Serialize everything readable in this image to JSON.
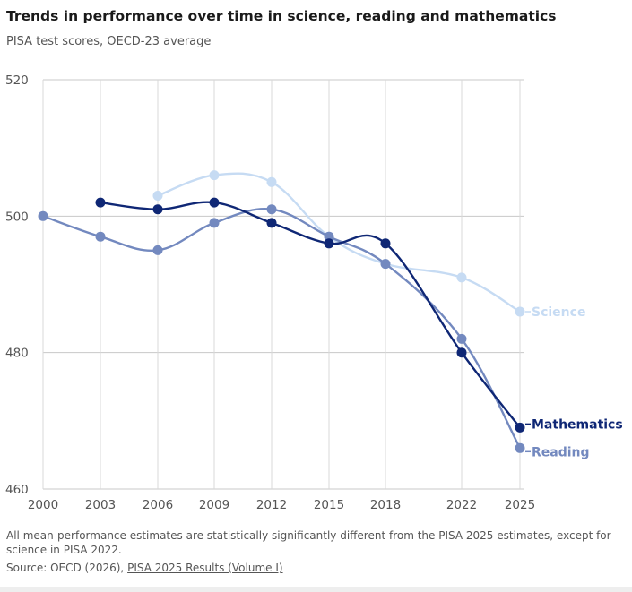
{
  "header": {
    "title": "Trends in performance over time in science, reading and mathematics",
    "subtitle": "PISA test scores, OECD-23 average"
  },
  "footer": {
    "note": "All mean-performance estimates are statistically significantly different from the PISA 2025 estimates, except for science in PISA 2022.",
    "source_prefix": "Source: OECD (2026), ",
    "source_link": "PISA 2025 Results (Volume I)"
  },
  "colors": {
    "science": "#c6dbf3",
    "reading": "#7389bf",
    "mathematics": "#0f2775",
    "grid": "#c8c8c8",
    "axis_text": "#555555"
  },
  "chart_data": {
    "type": "line",
    "x": [
      "2000",
      "2003",
      "2006",
      "2009",
      "2012",
      "2015",
      "2018",
      "2022",
      "2025"
    ],
    "ylim": [
      460,
      520
    ],
    "yticks": [
      "460",
      "480",
      "500",
      "520"
    ],
    "grid": true,
    "series": [
      {
        "name": "Science",
        "values": [
          null,
          null,
          503,
          506,
          505,
          497,
          493,
          491,
          486
        ]
      },
      {
        "name": "Reading",
        "values": [
          500,
          497,
          495,
          499,
          501,
          497,
          493,
          482,
          466
        ]
      },
      {
        "name": "Mathematics",
        "values": [
          null,
          502,
          501,
          502,
          499,
          496,
          496,
          480,
          469
        ]
      }
    ]
  }
}
